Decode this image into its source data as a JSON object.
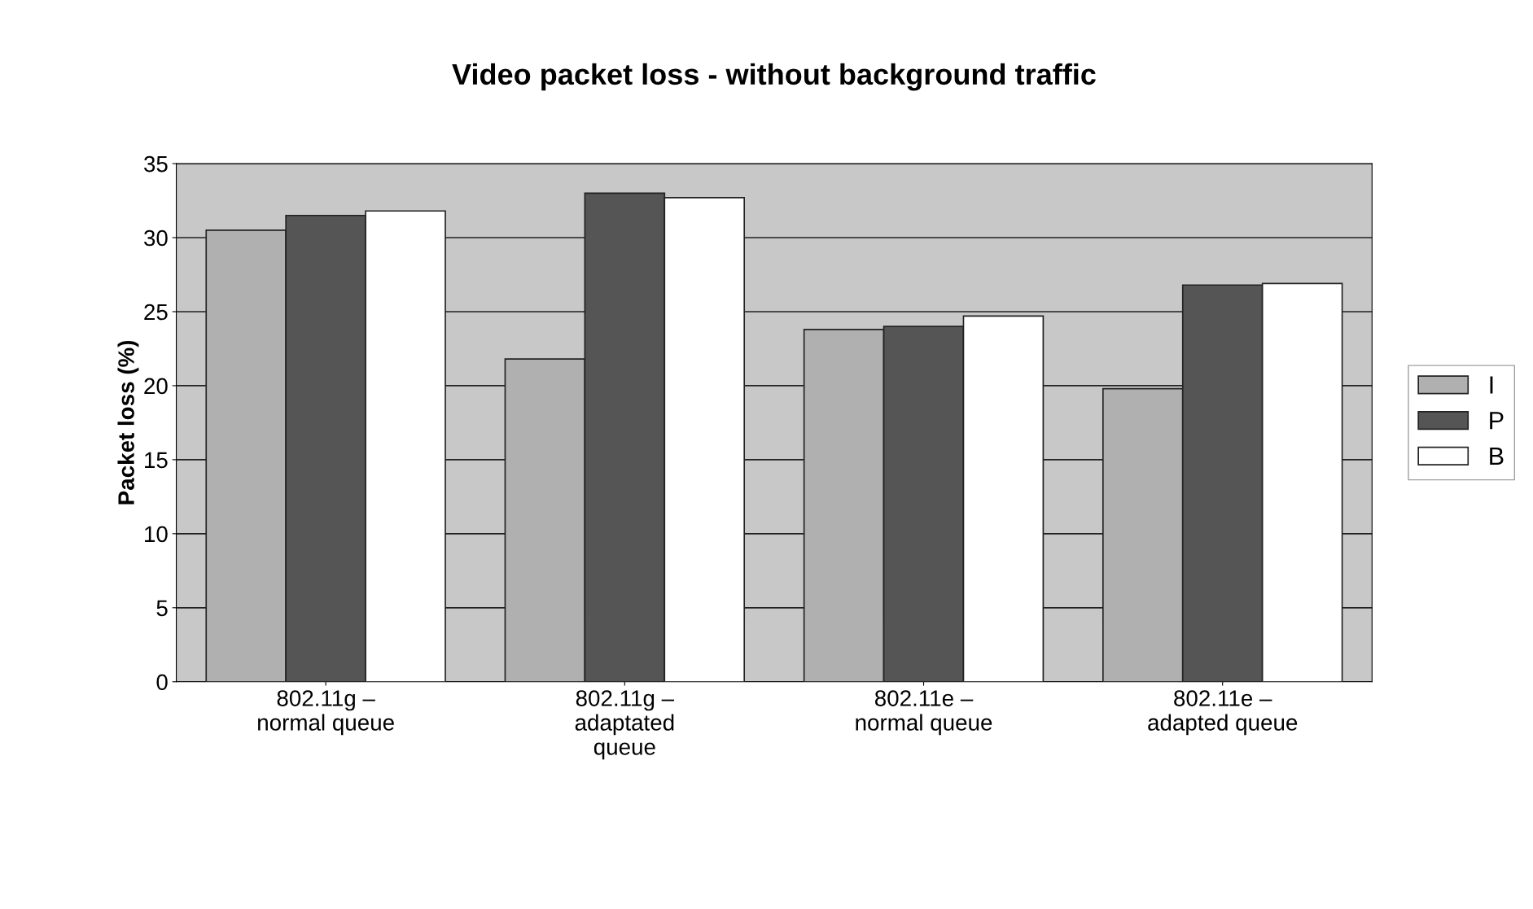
{
  "chart_data": {
    "type": "bar",
    "title": "Video packet loss - without background traffic",
    "ylabel": "Packet loss (%)",
    "categories": [
      "802.11g –\nnormal queue",
      "802.11g –\nadaptated\nqueue",
      "802.11e –\nnormal queue",
      "802.11e –\nadapted queue"
    ],
    "series": [
      {
        "name": "I",
        "color": "#b0b0b0",
        "values": [
          30.5,
          21.8,
          23.8,
          19.8
        ]
      },
      {
        "name": "P",
        "color": "#555555",
        "values": [
          31.5,
          33,
          24,
          26.8
        ]
      },
      {
        "name": "B",
        "color": "#ffffff",
        "values": [
          31.8,
          32.7,
          24.7,
          26.9
        ]
      }
    ],
    "ylim": [
      0,
      35
    ],
    "yticks": [
      0,
      5,
      10,
      15,
      20,
      25,
      30,
      35
    ],
    "grid": "y",
    "legend": "right"
  }
}
